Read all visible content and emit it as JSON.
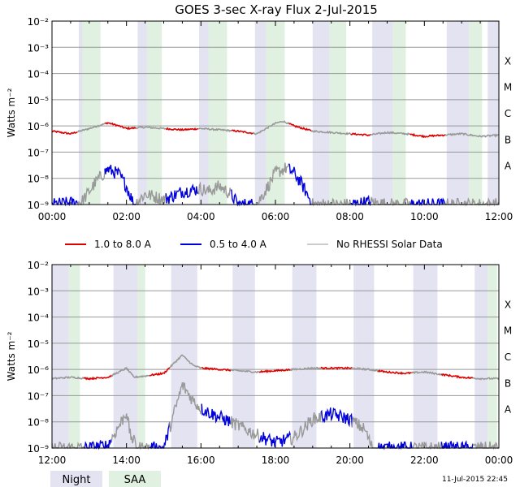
{
  "chart_data": [
    {
      "type": "line",
      "title": "GOES 3-sec X-ray Flux    2-Jul-2015",
      "ylabel": "Watts m⁻²",
      "yscale": "log",
      "ylim_exp": [
        -9,
        -2
      ],
      "y_ticks": [
        "10⁻⁹",
        "10⁻⁸",
        "10⁻⁷",
        "10⁻⁶",
        "10⁻⁵",
        "10⁻⁴",
        "10⁻³",
        "10⁻²"
      ],
      "xlim_hours": [
        0,
        12
      ],
      "x_ticks": [
        "00:00",
        "02:00",
        "04:00",
        "06:00",
        "08:00",
        "10:00",
        "12:00"
      ],
      "flare_classes": [
        "A",
        "B",
        "C",
        "M",
        "X"
      ],
      "night_intervals_hours": [
        [
          0.72,
          1.3
        ],
        [
          2.3,
          2.55
        ],
        [
          3.95,
          4.2
        ],
        [
          5.45,
          5.75
        ],
        [
          7.0,
          7.45
        ],
        [
          8.6,
          9.15
        ],
        [
          10.6,
          11.2
        ],
        [
          11.7,
          12.0
        ]
      ],
      "saa_intervals_hours": [
        [
          0.82,
          1.3
        ],
        [
          2.55,
          2.95
        ],
        [
          4.2,
          4.7
        ],
        [
          5.75,
          6.25
        ],
        [
          7.45,
          7.9
        ],
        [
          9.15,
          9.5
        ],
        [
          11.2,
          11.55
        ]
      ],
      "series": [
        {
          "name": "1.0 to 8.0 A",
          "color": "#dd0000",
          "x": [
            0,
            0.5,
            1.0,
            1.5,
            1.8,
            2.0,
            2.5,
            3.0,
            3.5,
            4.0,
            4.5,
            5.0,
            5.5,
            6.0,
            6.2,
            6.5,
            7.0,
            7.5,
            8.0,
            8.5,
            9.0,
            9.5,
            10.0,
            10.5,
            11.0,
            11.5,
            12.0
          ],
          "y": [
            -6.2,
            -6.3,
            -6.1,
            -5.88,
            -6.0,
            -6.1,
            -6.05,
            -6.1,
            -6.15,
            -6.1,
            -6.15,
            -6.2,
            -6.3,
            -5.9,
            -5.82,
            -6.0,
            -6.2,
            -6.25,
            -6.3,
            -6.35,
            -6.25,
            -6.3,
            -6.4,
            -6.35,
            -6.3,
            -6.4,
            -6.35
          ]
        },
        {
          "name": "0.5 to 4.0 A",
          "color": "#0000dd",
          "x": [
            0,
            0.8,
            1.0,
            1.2,
            1.5,
            1.8,
            2.0,
            2.2,
            2.5,
            3.0,
            3.2,
            3.5,
            4.0,
            4.2,
            4.5,
            4.8,
            5.0,
            5.2,
            5.5,
            5.8,
            6.0,
            6.3,
            6.5,
            6.7,
            7.0,
            7.5,
            8.0,
            8.5,
            9.0,
            9.5,
            10.0,
            10.5,
            11.0,
            11.5,
            12.0
          ],
          "y": [
            -9,
            -8.9,
            -8.5,
            -8.1,
            -7.65,
            -7.85,
            -8.3,
            -9,
            -8.6,
            -8.8,
            -8.7,
            -8.5,
            -8.4,
            -8.5,
            -8.3,
            -8.6,
            -9,
            -9,
            -9,
            -8.3,
            -7.8,
            -7.6,
            -7.8,
            -8.2,
            -9,
            -9,
            -9,
            -8.9,
            -9,
            -9,
            -9,
            -9,
            -9,
            -9,
            -9
          ]
        },
        {
          "name": "No RHESSI Solar Data",
          "color": "#999999"
        }
      ]
    },
    {
      "type": "line",
      "title": "",
      "ylabel": "Watts m⁻²",
      "yscale": "log",
      "ylim_exp": [
        -9,
        -2
      ],
      "y_ticks": [
        "10⁻⁹",
        "10⁻⁸",
        "10⁻⁷",
        "10⁻⁶",
        "10⁻⁵",
        "10⁻⁴",
        "10⁻³",
        "10⁻²"
      ],
      "xlim_hours": [
        12,
        24
      ],
      "x_ticks": [
        "12:00",
        "14:00",
        "16:00",
        "18:00",
        "20:00",
        "22:00",
        "00:00"
      ],
      "flare_classes": [
        "A",
        "B",
        "C",
        "M",
        "X"
      ],
      "night_intervals_hours": [
        [
          12.0,
          12.45
        ],
        [
          13.65,
          14.3
        ],
        [
          15.2,
          15.9
        ],
        [
          16.85,
          17.45
        ],
        [
          18.45,
          19.1
        ],
        [
          20.1,
          20.65
        ],
        [
          21.7,
          22.35
        ],
        [
          23.35,
          23.7
        ]
      ],
      "saa_intervals_hours": [
        [
          12.45,
          12.75
        ],
        [
          14.3,
          14.5
        ],
        [
          23.7,
          23.95
        ]
      ],
      "series": [
        {
          "name": "1.0 to 8.0 A",
          "color": "#dd0000",
          "x": [
            12.0,
            12.5,
            13.0,
            13.5,
            13.8,
            14.0,
            14.2,
            14.5,
            15.0,
            15.5,
            15.6,
            15.8,
            16.0,
            16.5,
            17.0,
            17.5,
            18.0,
            18.5,
            19.0,
            19.5,
            20.0,
            20.5,
            21.0,
            21.5,
            22.0,
            22.5,
            23.0,
            23.5,
            24.0
          ],
          "y": [
            -6.35,
            -6.3,
            -6.35,
            -6.3,
            -6.1,
            -5.95,
            -6.3,
            -6.25,
            -6.15,
            -5.45,
            -5.6,
            -5.85,
            -5.95,
            -6.0,
            -6.05,
            -6.1,
            -6.05,
            -6.0,
            -5.95,
            -5.95,
            -5.95,
            -6.0,
            -6.1,
            -6.15,
            -6.1,
            -6.2,
            -6.3,
            -6.35,
            -6.35
          ]
        },
        {
          "name": "0.5 to 4.0 A",
          "color": "#0000dd",
          "x": [
            12.0,
            13.0,
            13.5,
            13.9,
            14.0,
            14.1,
            14.3,
            15.0,
            15.5,
            15.6,
            15.8,
            16.0,
            16.3,
            16.8,
            17.5,
            18.0,
            18.5,
            18.8,
            19.0,
            19.5,
            20.0,
            20.4,
            20.6,
            21.0,
            22.0,
            23.0,
            24.0
          ],
          "y": [
            -9,
            -9,
            -8.9,
            -7.9,
            -7.6,
            -8.5,
            -9,
            -9,
            -6.6,
            -6.8,
            -7.2,
            -7.5,
            -7.7,
            -8.0,
            -8.5,
            -8.8,
            -8.6,
            -8.2,
            -7.9,
            -7.7,
            -7.9,
            -8.3,
            -9,
            -9,
            -9,
            -9,
            -9
          ]
        },
        {
          "name": "No RHESSI Solar Data",
          "color": "#999999"
        }
      ]
    }
  ],
  "legend": {
    "series": [
      "1.0 to 8.0 A",
      "0.5 to 4.0 A",
      "No RHESSI Solar Data"
    ],
    "bands": [
      "Night",
      "SAA"
    ]
  },
  "footer": {
    "timestamp": "11-Jul-2015 22:45"
  },
  "colors": {
    "night": "#e3e3f2",
    "saa": "#e1f1e1",
    "long_channel": "#dd0000",
    "short_channel": "#0000dd",
    "no_rhessi": "#999999",
    "grid": "#999999"
  }
}
